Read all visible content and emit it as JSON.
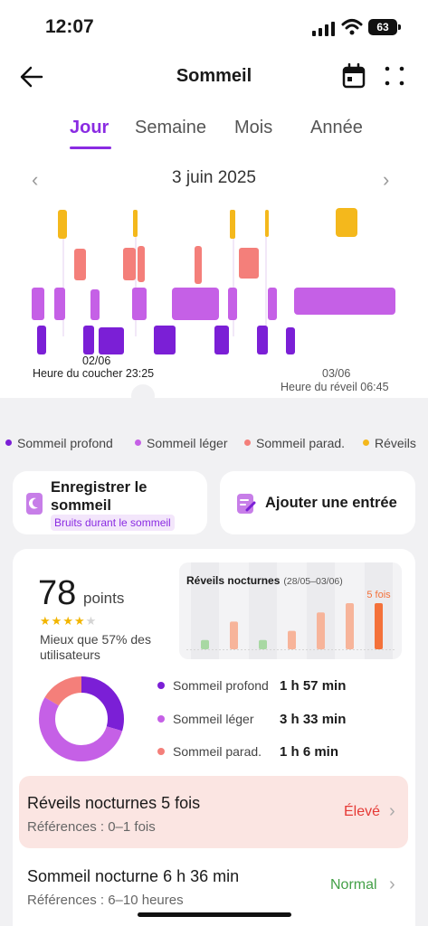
{
  "status_bar": {
    "time": "12:07",
    "battery": "63"
  },
  "header": {
    "title": "Sommeil"
  },
  "tabs": [
    {
      "label": "Jour",
      "active": true
    },
    {
      "label": "Semaine",
      "active": false
    },
    {
      "label": "Mois",
      "active": false
    },
    {
      "label": "Année",
      "active": false
    }
  ],
  "date": {
    "label": "3 juin 2025"
  },
  "hypnogram": {
    "start_date": "02/06",
    "bedtime_label": "Heure du coucher 23:25",
    "end_date": "03/06",
    "wake_label": "Heure du réveil 06:45"
  },
  "legend": [
    {
      "label": "Sommeil profond",
      "color": "#7b1fd6"
    },
    {
      "label": "Sommeil léger",
      "color": "#c560e6"
    },
    {
      "label": "Sommeil parad.",
      "color": "#f47f7a"
    },
    {
      "label": "Réveils",
      "color": "#f4b81c"
    }
  ],
  "actions": {
    "record_label": "Enregistrer le sommeil",
    "record_badge": "Bruits durant le sommeil",
    "add_label": "Ajouter une entrée"
  },
  "score": {
    "value": "78",
    "unit": "points",
    "stars": 4,
    "max_stars": 5,
    "comparison": "Mieux que 57% des utilisateurs"
  },
  "awakenings_chart": {
    "title": "Réveils nocturnes",
    "range": "(28/05–03/06)",
    "highlight_label": "5 fois",
    "values": [
      1,
      3,
      1,
      2,
      4,
      5,
      5
    ]
  },
  "breakdown": [
    {
      "label": "Sommeil profond",
      "value": "1 h 57 min",
      "color": "#7b1fd6"
    },
    {
      "label": "Sommeil léger",
      "value": "3 h 33 min",
      "color": "#c560e6"
    },
    {
      "label": "Sommeil parad.",
      "value": "1 h 6 min",
      "color": "#f47f7a"
    }
  ],
  "alerts": [
    {
      "title": "Réveils nocturnes 5 fois",
      "subtitle": "Références : 0–1 fois",
      "status": "Élevé",
      "status_color": "#e53935"
    },
    {
      "title": "Sommeil nocturne 6 h 36 min",
      "subtitle": "Références : 6–10 heures",
      "status": "Normal",
      "status_color": "#43a047"
    }
  ]
}
